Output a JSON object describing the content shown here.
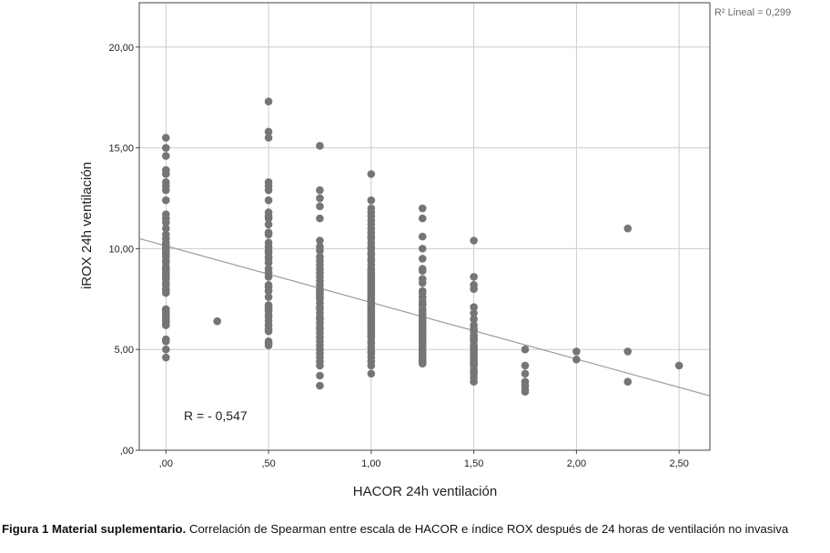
{
  "caption": {
    "label": "Figura  1 Material suplementario.",
    "text": "Correlación de Spearman entre escala de HACOR e índice ROX después de 24 horas de ventilación no invasiva"
  },
  "chart_data": {
    "type": "scatter",
    "xlabel": "HACOR 24h ventilación",
    "ylabel": "iROX 24h ventilación",
    "xlim": [
      -0.13,
      2.65
    ],
    "ylim": [
      0,
      22.2
    ],
    "x_ticks": [
      0,
      0.5,
      1,
      1.5,
      2,
      2.5
    ],
    "x_tick_labels": [
      ",00",
      ",50",
      "1,00",
      "1,50",
      "2,00",
      "2,50"
    ],
    "y_ticks": [
      0,
      5,
      10,
      15,
      20
    ],
    "y_tick_labels": [
      ",00",
      "5,00",
      "10,00",
      "15,00",
      "20,00"
    ],
    "grid": true,
    "point_color": "#757575",
    "line_color": "#9a9a9a",
    "r2_label": "R² Lineal = 0,299",
    "annotation": "R = - 0,547",
    "fit_line": {
      "x": [
        -0.13,
        2.65
      ],
      "y": [
        10.5,
        2.7
      ]
    },
    "series": [
      {
        "x": [
          0,
          0,
          0,
          0,
          0,
          0,
          0,
          0,
          0,
          0,
          0,
          0,
          0,
          0,
          0,
          0,
          0,
          0,
          0,
          0,
          0,
          0,
          0,
          0,
          0,
          0,
          0,
          0,
          0,
          0,
          0,
          0,
          0,
          0,
          0,
          0,
          0,
          0,
          0,
          0,
          0,
          0,
          0,
          0,
          0,
          0,
          0,
          0,
          0,
          0
        ],
        "y": [
          15.5,
          15.0,
          14.6,
          13.9,
          13.7,
          13.3,
          13.1,
          12.9,
          12.4,
          11.7,
          11.5,
          11.3,
          11.0,
          10.7,
          10.5,
          10.3,
          10.1,
          10.0,
          9.9,
          9.8,
          9.7,
          9.6,
          9.4,
          9.3,
          9.1,
          9.0,
          8.9,
          8.8,
          8.7,
          8.6,
          8.5,
          8.3,
          8.2,
          8.0,
          7.9,
          7.8,
          7.0,
          6.9,
          6.8,
          6.7,
          6.6,
          6.5,
          6.4,
          6.3,
          6.2,
          5.5,
          5.4,
          5.0,
          4.6,
          10.2
        ]
      },
      {
        "x": [
          0.25
        ],
        "y": [
          6.4
        ]
      },
      {
        "x": [
          0.5,
          0.5,
          0.5,
          0.5,
          0.5,
          0.5,
          0.5,
          0.5,
          0.5,
          0.5,
          0.5,
          0.5,
          0.5,
          0.5,
          0.5,
          0.5,
          0.5,
          0.5,
          0.5,
          0.5,
          0.5,
          0.5,
          0.5,
          0.5,
          0.5,
          0.5,
          0.5,
          0.5,
          0.5,
          0.5,
          0.5,
          0.5,
          0.5,
          0.5,
          0.5,
          0.5,
          0.5,
          0.5,
          0.5,
          0.5
        ],
        "y": [
          17.3,
          15.8,
          15.5,
          13.3,
          13.1,
          12.9,
          12.4,
          11.8,
          11.6,
          11.5,
          11.2,
          10.8,
          10.7,
          10.3,
          10.1,
          9.9,
          9.8,
          9.6,
          9.5,
          9.3,
          9.0,
          8.8,
          8.6,
          8.2,
          8.1,
          7.9,
          7.6,
          7.2,
          7.1,
          7.0,
          6.9,
          6.7,
          6.6,
          6.4,
          6.2,
          6.0,
          5.9,
          5.4,
          5.3,
          5.2
        ]
      },
      {
        "x": [
          0.75,
          0.75,
          0.75,
          0.75,
          0.75,
          0.75,
          0.75,
          0.75,
          0.75,
          0.75,
          0.75,
          0.75,
          0.75,
          0.75,
          0.75,
          0.75,
          0.75,
          0.75,
          0.75,
          0.75,
          0.75,
          0.75,
          0.75,
          0.75,
          0.75,
          0.75,
          0.75,
          0.75,
          0.75,
          0.75,
          0.75,
          0.75,
          0.75,
          0.75,
          0.75,
          0.75,
          0.75,
          0.75,
          0.75,
          0.75,
          0.75,
          0.75
        ],
        "y": [
          15.1,
          12.9,
          12.5,
          12.1,
          11.5,
          10.4,
          10.1,
          9.9,
          9.6,
          9.4,
          9.2,
          9.0,
          8.8,
          8.6,
          8.4,
          8.2,
          8.0,
          7.9,
          7.8,
          7.6,
          7.5,
          7.3,
          7.1,
          7.0,
          6.8,
          6.6,
          6.5,
          6.3,
          6.1,
          6.0,
          5.8,
          5.6,
          5.4,
          5.2,
          5.0,
          4.8,
          4.6,
          4.4,
          4.2,
          3.7,
          3.2,
          7.7
        ]
      },
      {
        "x": [
          1,
          1,
          1,
          1,
          1,
          1,
          1,
          1,
          1,
          1,
          1,
          1,
          1,
          1,
          1,
          1,
          1,
          1,
          1,
          1,
          1,
          1,
          1,
          1,
          1,
          1,
          1,
          1,
          1,
          1,
          1,
          1,
          1,
          1,
          1,
          1,
          1,
          1,
          1,
          1,
          1,
          1,
          1,
          1,
          1,
          1,
          1,
          1,
          1,
          1,
          1,
          1,
          1,
          1,
          1,
          1,
          1,
          1,
          1,
          1,
          1,
          1,
          1
        ],
        "y": [
          13.7,
          12.4,
          12.0,
          11.8,
          11.6,
          11.4,
          11.2,
          11.0,
          10.8,
          10.6,
          10.5,
          10.3,
          10.1,
          10.0,
          9.8,
          9.7,
          9.5,
          9.4,
          9.2,
          9.0,
          8.9,
          8.8,
          8.7,
          8.6,
          8.5,
          8.4,
          8.3,
          8.2,
          8.1,
          8.0,
          7.9,
          7.8,
          7.7,
          7.6,
          7.5,
          7.4,
          7.3,
          7.2,
          7.1,
          7.0,
          6.9,
          6.8,
          6.7,
          6.6,
          6.5,
          6.4,
          6.3,
          6.2,
          6.1,
          6.0,
          5.9,
          5.8,
          5.7,
          5.6,
          5.4,
          5.3,
          5.1,
          4.9,
          4.8,
          4.6,
          4.4,
          4.2,
          3.8
        ]
      },
      {
        "x": [
          1.25,
          1.25,
          1.25,
          1.25,
          1.25,
          1.25,
          1.25,
          1.25,
          1.25,
          1.25,
          1.25,
          1.25,
          1.25,
          1.25,
          1.25,
          1.25,
          1.25,
          1.25,
          1.25,
          1.25,
          1.25,
          1.25,
          1.25,
          1.25,
          1.25,
          1.25,
          1.25,
          1.25,
          1.25,
          1.25,
          1.25,
          1.25,
          1.25,
          1.25,
          1.25,
          1.25,
          1.25,
          1.25,
          1.25,
          1.25,
          1.25,
          1.25,
          1.25,
          1.25,
          1.25
        ],
        "y": [
          12.0,
          11.5,
          10.6,
          10.0,
          9.5,
          9.0,
          8.9,
          8.5,
          8.3,
          7.9,
          7.8,
          7.6,
          7.4,
          7.3,
          7.2,
          7.0,
          6.9,
          6.8,
          6.7,
          6.6,
          6.5,
          6.4,
          6.3,
          6.2,
          6.1,
          6.0,
          5.9,
          5.8,
          5.7,
          5.6,
          5.5,
          5.4,
          5.3,
          5.2,
          5.1,
          5.0,
          4.9,
          4.8,
          4.7,
          4.6,
          4.5,
          4.4,
          4.4,
          4.3,
          4.3
        ]
      },
      {
        "x": [
          1.5,
          1.5,
          1.5,
          1.5,
          1.5,
          1.5,
          1.5,
          1.5,
          1.5,
          1.5,
          1.5,
          1.5,
          1.5,
          1.5,
          1.5,
          1.5,
          1.5,
          1.5,
          1.5,
          1.5,
          1.5,
          1.5,
          1.5,
          1.5,
          1.5,
          1.5,
          1.5,
          1.5,
          1.5,
          1.5
        ],
        "y": [
          10.4,
          8.6,
          8.2,
          8.0,
          7.1,
          6.8,
          6.5,
          6.2,
          6.0,
          5.9,
          5.7,
          5.6,
          5.5,
          5.4,
          5.2,
          5.1,
          5.0,
          4.9,
          4.8,
          4.7,
          4.6,
          4.5,
          4.4,
          4.3,
          4.2,
          4.0,
          3.9,
          3.8,
          3.6,
          3.4
        ]
      },
      {
        "x": [
          1.75,
          1.75,
          1.75,
          1.75,
          1.75,
          1.75,
          1.75
        ],
        "y": [
          5.0,
          4.2,
          3.8,
          3.4,
          3.2,
          3.0,
          2.9
        ]
      },
      {
        "x": [
          2.0,
          2.0
        ],
        "y": [
          4.9,
          4.5
        ]
      },
      {
        "x": [
          2.25,
          2.25,
          2.25
        ],
        "y": [
          11.0,
          4.9,
          3.4
        ]
      },
      {
        "x": [
          2.5
        ],
        "y": [
          4.2
        ]
      }
    ]
  }
}
